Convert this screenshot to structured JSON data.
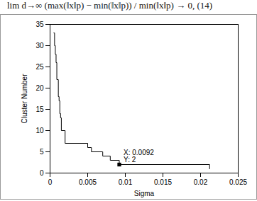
{
  "chart_data": {
    "type": "line",
    "title": "lim d→∞ (max(‖x‖p) − min(‖x‖p)) / min(‖x‖p) → 0,   (14)",
    "x_label": "Sigma",
    "y_label": "Cluster Number",
    "x": [
      0.0005,
      0.0006,
      0.0007,
      0.0008,
      0.0009,
      0.0011,
      0.0012,
      0.0013,
      0.0014,
      0.0015,
      0.002,
      0.005,
      0.0055,
      0.007,
      0.0075,
      0.008,
      0.0092,
      0.0212
    ],
    "values": [
      33,
      30,
      28,
      26,
      22,
      18,
      17,
      14,
      13,
      10,
      7,
      6,
      5,
      4,
      4,
      3,
      2,
      1
    ],
    "color": "#000000",
    "line_style": "step",
    "xlim": [
      0,
      0.025
    ],
    "xticks": [
      0,
      0.005,
      0.01,
      0.015,
      0.02,
      0.025
    ],
    "ylim": [
      0,
      35
    ],
    "yticks": [
      0,
      5,
      10,
      15,
      20,
      25,
      30,
      35
    ],
    "annotations": [
      {
        "x": 0.0092,
        "y": 2,
        "label": "X: 0.0092\nY: 2",
        "marker": "square"
      }
    ]
  }
}
